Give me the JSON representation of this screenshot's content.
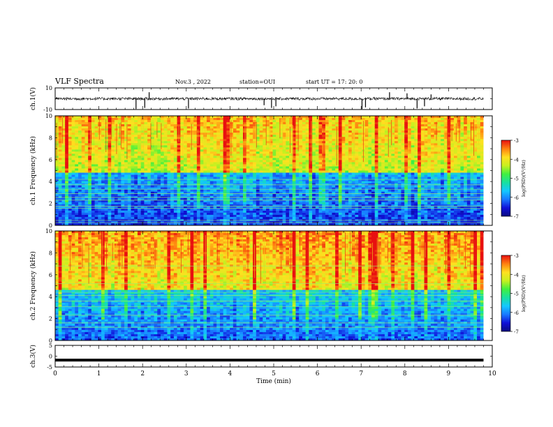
{
  "header": {
    "title": "VLF Spectra",
    "date": "Nov.3 , 2022",
    "station": "station=OUI",
    "start": "start UT = 17: 20: 0"
  },
  "colors": {
    "colormap": [
      "#0a0a80",
      "#1010d8",
      "#1878ff",
      "#14c8ff",
      "#18e0a0",
      "#40f040",
      "#c8f020",
      "#ffe020",
      "#ff8010",
      "#e81010",
      "#ffffff"
    ],
    "trace": "#000000"
  },
  "chart_data": [
    {
      "type": "line",
      "panel": "ch1-waveform",
      "ylabel": "ch.1(V)",
      "ylim": [
        -10,
        10
      ],
      "yticks": [
        "10",
        "-10"
      ],
      "xlim": [
        0,
        10
      ],
      "baseline": 0.0,
      "noise_amplitude": 1.3,
      "spike_times": [
        1.85,
        2.05,
        2.15,
        3.05,
        4.78,
        4.95,
        5.05,
        7.02,
        7.1,
        7.65,
        8.05,
        8.28,
        8.45,
        8.6
      ],
      "spike_values": [
        -9.5,
        -8.5,
        6,
        -9,
        -6,
        -8.5,
        -7,
        -9.5,
        -8,
        6,
        5,
        -9,
        -7,
        4
      ]
    },
    {
      "type": "heatmap",
      "panel": "ch1-spectrogram",
      "ylabel": "ch.1 Frequency (kHz)",
      "xlim": [
        0,
        9.8
      ],
      "ylim": [
        0,
        10
      ],
      "yticks": [
        "0",
        "2",
        "4",
        "6",
        "8",
        "10"
      ],
      "colorbar": {
        "label": "log(PSD)(V²/Hz)",
        "range": [
          -7,
          -3
        ],
        "ticks": [
          "-3",
          "-4",
          "-5",
          "-6",
          "-7"
        ]
      },
      "transition_khz": 4.9,
      "low_band_level": -6.4,
      "high_band_level": -4.3,
      "strong_lines_khz": [
        0.25,
        0.45,
        1.55,
        1.75,
        2.3,
        2.55,
        2.9,
        3.3,
        3.7,
        4.2
      ]
    },
    {
      "type": "heatmap",
      "panel": "ch2-spectrogram",
      "ylabel": "ch.2 Frequency (kHz)",
      "xlim": [
        0,
        9.8
      ],
      "ylim": [
        0,
        10
      ],
      "yticks": [
        "0",
        "2",
        "4",
        "6",
        "8",
        "10"
      ],
      "colorbar": {
        "label": "log(PSD)(V²/Hz)",
        "range": [
          -7,
          -3
        ],
        "ticks": [
          "-3",
          "-4",
          "-5",
          "-6",
          "-7"
        ]
      },
      "transition_khz": 4.6,
      "low_band_level": -6.2,
      "high_band_level": -4.1,
      "strong_lines_khz": [
        1.2,
        1.6,
        2.3,
        3.1,
        3.6,
        4.1,
        4.4,
        5.2,
        6.8
      ]
    },
    {
      "type": "line",
      "panel": "ch3-waveform",
      "ylabel": "ch.3(V)",
      "ylim": [
        -5,
        5
      ],
      "yticks": [
        "5",
        "0",
        "-5"
      ],
      "xlim": [
        0,
        9.8
      ],
      "xlabel": "Time (min)",
      "xticks": [
        "0",
        "1",
        "2",
        "3",
        "4",
        "5",
        "6",
        "7",
        "8",
        "9",
        "10"
      ],
      "series": [
        {
          "x": [
            0,
            9.8
          ],
          "values": [
            -1.8,
            -1.8
          ]
        }
      ]
    }
  ]
}
